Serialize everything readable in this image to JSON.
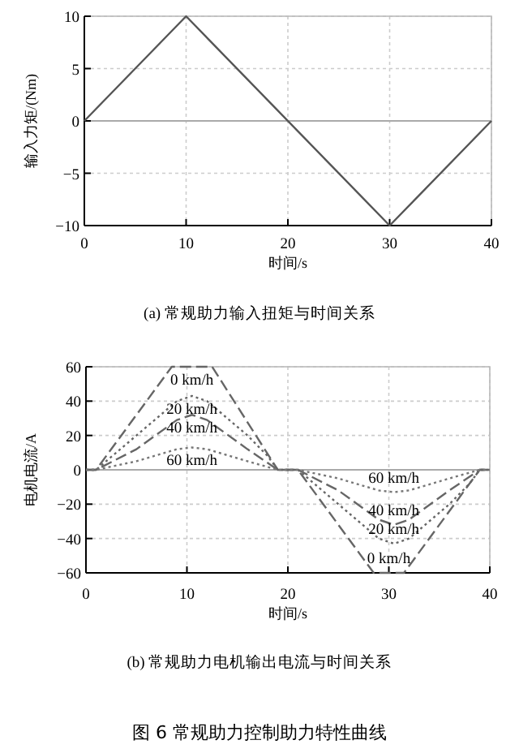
{
  "chart_data": [
    {
      "type": "line",
      "x": [
        0,
        10,
        30,
        40
      ],
      "values": [
        0,
        10,
        -10,
        0
      ],
      "color": "#555555",
      "line_style": "solid",
      "xlim": [
        0,
        40
      ],
      "ylim": [
        -10,
        10
      ],
      "xticks": [
        0,
        10,
        20,
        30,
        40
      ],
      "yticks": [
        -10,
        -5,
        0,
        5,
        10
      ],
      "xlabel": "时间/s",
      "ylabel": "输入力矩/(Nm)",
      "grid": true,
      "ref_lines": [
        {
          "axis": "y",
          "value": 0,
          "color": "#aaaaaa"
        }
      ],
      "annotations": [
        "(a) 常规助力输入扭矩与时间关系"
      ]
    },
    {
      "type": "line",
      "xlim": [
        0,
        40
      ],
      "ylim": [
        -60,
        60
      ],
      "xticks": [
        0,
        10,
        20,
        30,
        40
      ],
      "yticks": [
        -60,
        -40,
        -20,
        0,
        20,
        40,
        60
      ],
      "xlabel": "时间/s",
      "ylabel": "电机电流/A",
      "grid": true,
      "ref_lines": [
        {
          "axis": "y",
          "value": 0,
          "color": "#aaaaaa"
        }
      ],
      "series": [
        {
          "name": "0 km/h",
          "color": "#666666",
          "line_style": "dashed",
          "x": [
            0,
            1,
            8.5,
            12.5,
            19,
            21,
            28.5,
            31.5,
            39,
            40
          ],
          "values": [
            0,
            0,
            60,
            60,
            0,
            0,
            -60,
            -60,
            0,
            0
          ]
        },
        {
          "name": "20 km/h",
          "color": "#666666",
          "line_style": "dotted",
          "x": [
            0,
            1,
            3,
            5,
            7,
            9,
            10.5,
            12,
            14,
            16,
            18,
            19,
            21,
            23,
            25,
            27,
            29,
            30.5,
            32,
            34,
            36,
            38,
            39,
            40
          ],
          "values": [
            0,
            0,
            10,
            20,
            30,
            40,
            43,
            40,
            30,
            20,
            8,
            0,
            0,
            -10,
            -20,
            -30,
            -40,
            -43,
            -40,
            -30,
            -20,
            -8,
            0,
            0
          ]
        },
        {
          "name": "40 km/h",
          "color": "#666666",
          "line_style": "dashed",
          "x": [
            0,
            1,
            5,
            9,
            10.5,
            12,
            16,
            19,
            21,
            25,
            29,
            30.5,
            32,
            36,
            39,
            40
          ],
          "values": [
            0,
            0,
            12,
            29,
            32,
            29,
            12,
            0,
            0,
            -12,
            -29,
            -32,
            -29,
            -12,
            0,
            0
          ]
        },
        {
          "name": "60 km/h",
          "color": "#777777",
          "line_style": "dotted",
          "x": [
            0,
            1,
            5,
            9,
            10.5,
            12,
            16,
            19,
            21,
            25,
            29,
            30.5,
            32,
            36,
            39,
            40
          ],
          "values": [
            0,
            0,
            5,
            12,
            13,
            12,
            5,
            0,
            0,
            -5,
            -12,
            -13,
            -12,
            -5,
            0,
            0
          ]
        }
      ],
      "annotations": [
        "(b) 常规助力电机输出电流与时间关系",
        "图 6 常规助力控制助力特性曲线"
      ]
    }
  ]
}
